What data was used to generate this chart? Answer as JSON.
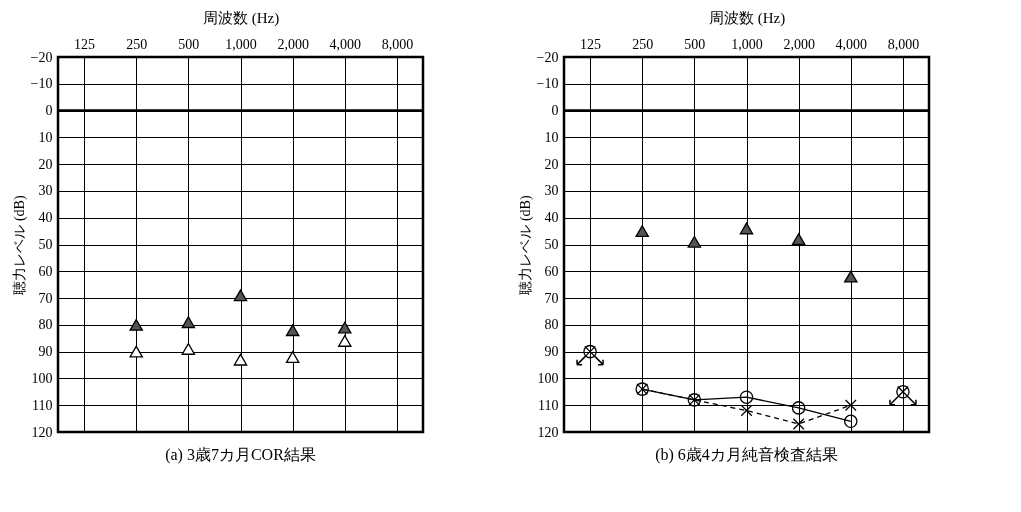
{
  "chart_data": [
    {
      "type": "scatter",
      "title": "(a) 3歳7カ月COR結果",
      "xlabel": "周波数 (Hz)",
      "ylabel": "聴力レベル (dB)",
      "categories": [
        "125",
        "250",
        "500",
        "1,000",
        "2,000",
        "4,000",
        "8,000"
      ],
      "ylim": [
        120,
        -20
      ],
      "yticks": [
        -20,
        -10,
        0,
        10,
        20,
        30,
        40,
        50,
        60,
        70,
        80,
        90,
        100,
        110,
        120
      ],
      "grid": true,
      "marker": "triangle",
      "ref_lines": [
        {
          "axis": "y",
          "value": 0
        }
      ],
      "series": [
        {
          "color": "#555555",
          "values": [
            null,
            80,
            79,
            69,
            82,
            81,
            null
          ]
        },
        {
          "color": "#ffffff",
          "values": [
            null,
            90,
            89,
            93,
            92,
            86,
            null
          ]
        }
      ]
    },
    {
      "type": "scatter",
      "title": "(b) 6歳4カ月純音検査結果",
      "xlabel": "周波数 (Hz)",
      "ylabel": "聴力レベル (dB)",
      "categories": [
        "125",
        "250",
        "500",
        "1,000",
        "2,000",
        "4,000",
        "8,000"
      ],
      "ylim": [
        120,
        -20
      ],
      "yticks": [
        -20,
        -10,
        0,
        10,
        20,
        30,
        40,
        50,
        60,
        70,
        80,
        90,
        100,
        110,
        120
      ],
      "grid": true,
      "marker": "triangle",
      "ref_lines": [
        {
          "axis": "y",
          "value": 0
        }
      ],
      "series": [
        {
          "color": "#555555",
          "values": [
            null,
            45,
            49,
            44,
            48,
            62,
            null
          ]
        },
        {
          "type": "line",
          "marker": "circle",
          "line_style": "solid",
          "color": "#000000",
          "values": [
            null,
            104,
            108,
            107,
            111,
            116,
            null
          ]
        },
        {
          "type": "line",
          "marker": "cross",
          "line_style": "dashed",
          "color": "#000000",
          "values": [
            null,
            104,
            108,
            112,
            117,
            110,
            null
          ]
        },
        {
          "marker": "cross",
          "color": "#000000",
          "values": [
            90,
            null,
            null,
            null,
            null,
            null,
            105
          ]
        },
        {
          "marker": "circle",
          "color": "#000000",
          "values": [
            90,
            null,
            null,
            null,
            null,
            null,
            105
          ]
        }
      ]
    }
  ]
}
